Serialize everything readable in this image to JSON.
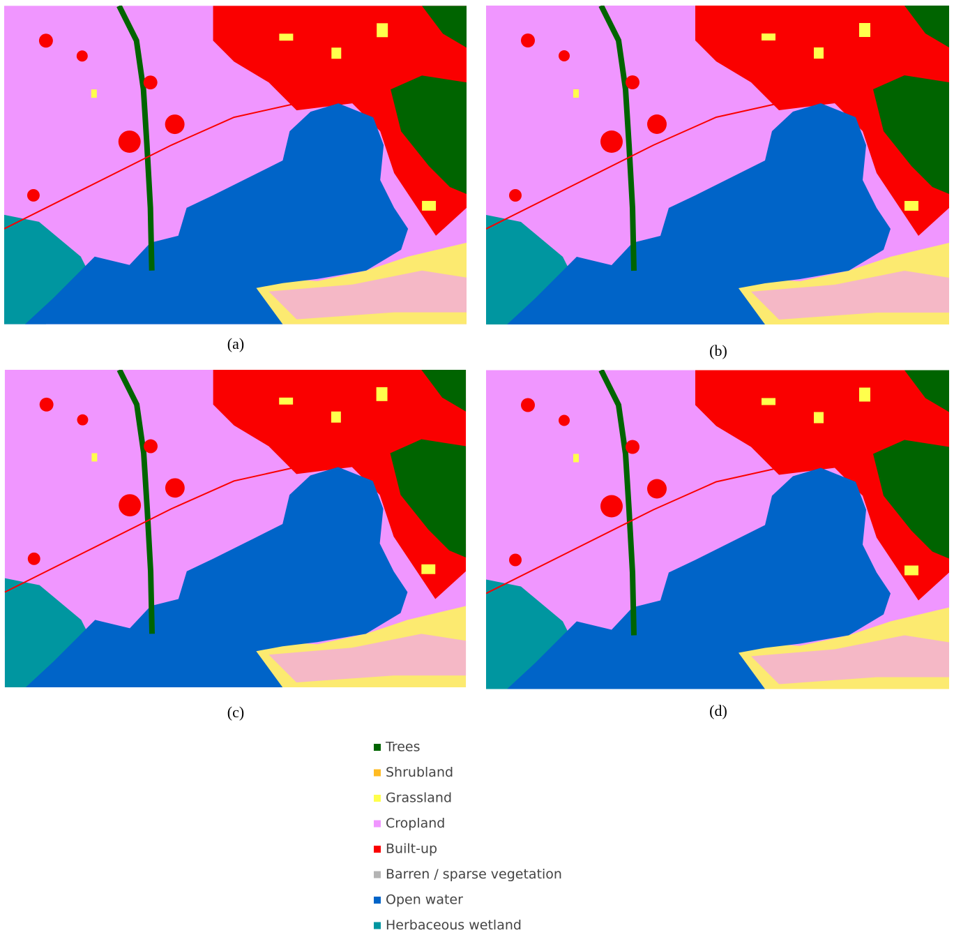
{
  "panels": [
    {
      "label": "(a)"
    },
    {
      "label": "(b)"
    },
    {
      "label": "(c)"
    },
    {
      "label": "(d)"
    }
  ],
  "legend": [
    {
      "name": "Trees",
      "color": "#006400"
    },
    {
      "name": "Shrubland",
      "color": "#ffbb22"
    },
    {
      "name": "Grassland",
      "color": "#ffff4c"
    },
    {
      "name": "Cropland",
      "color": "#f096ff"
    },
    {
      "name": "Built-up",
      "color": "#fa0000"
    },
    {
      "name": "Barren / sparse vegetation",
      "color": "#b4b4b4"
    },
    {
      "name": "Open water",
      "color": "#0064c8"
    },
    {
      "name": "Herbaceous wetland",
      "color": "#0096a0"
    }
  ]
}
